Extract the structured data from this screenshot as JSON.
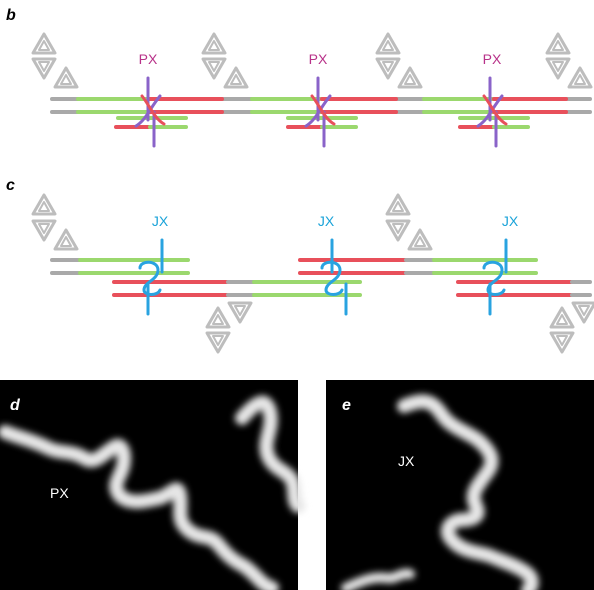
{
  "colors": {
    "px_label": "#b83289",
    "jx_label": "#1aa3d9",
    "red_strand": "#e8505b",
    "green_strand": "#9bd86e",
    "gray_strand": "#a9a9a9",
    "px_crossover": "#8a63c9",
    "jx_crossover": "#29a3e0",
    "triangle": "#bdbdbd",
    "micrograph_bg": "#000000",
    "micrograph_fg": "#e8e8e8"
  },
  "panel_b": {
    "letter": "b",
    "junctions": [
      "PX",
      "PX",
      "PX"
    ]
  },
  "panel_c": {
    "letter": "c",
    "junctions": [
      "JX",
      "JX",
      "JX"
    ]
  },
  "panel_d": {
    "letter": "d",
    "label": "PX"
  },
  "panel_e": {
    "letter": "e",
    "label": "JX"
  }
}
